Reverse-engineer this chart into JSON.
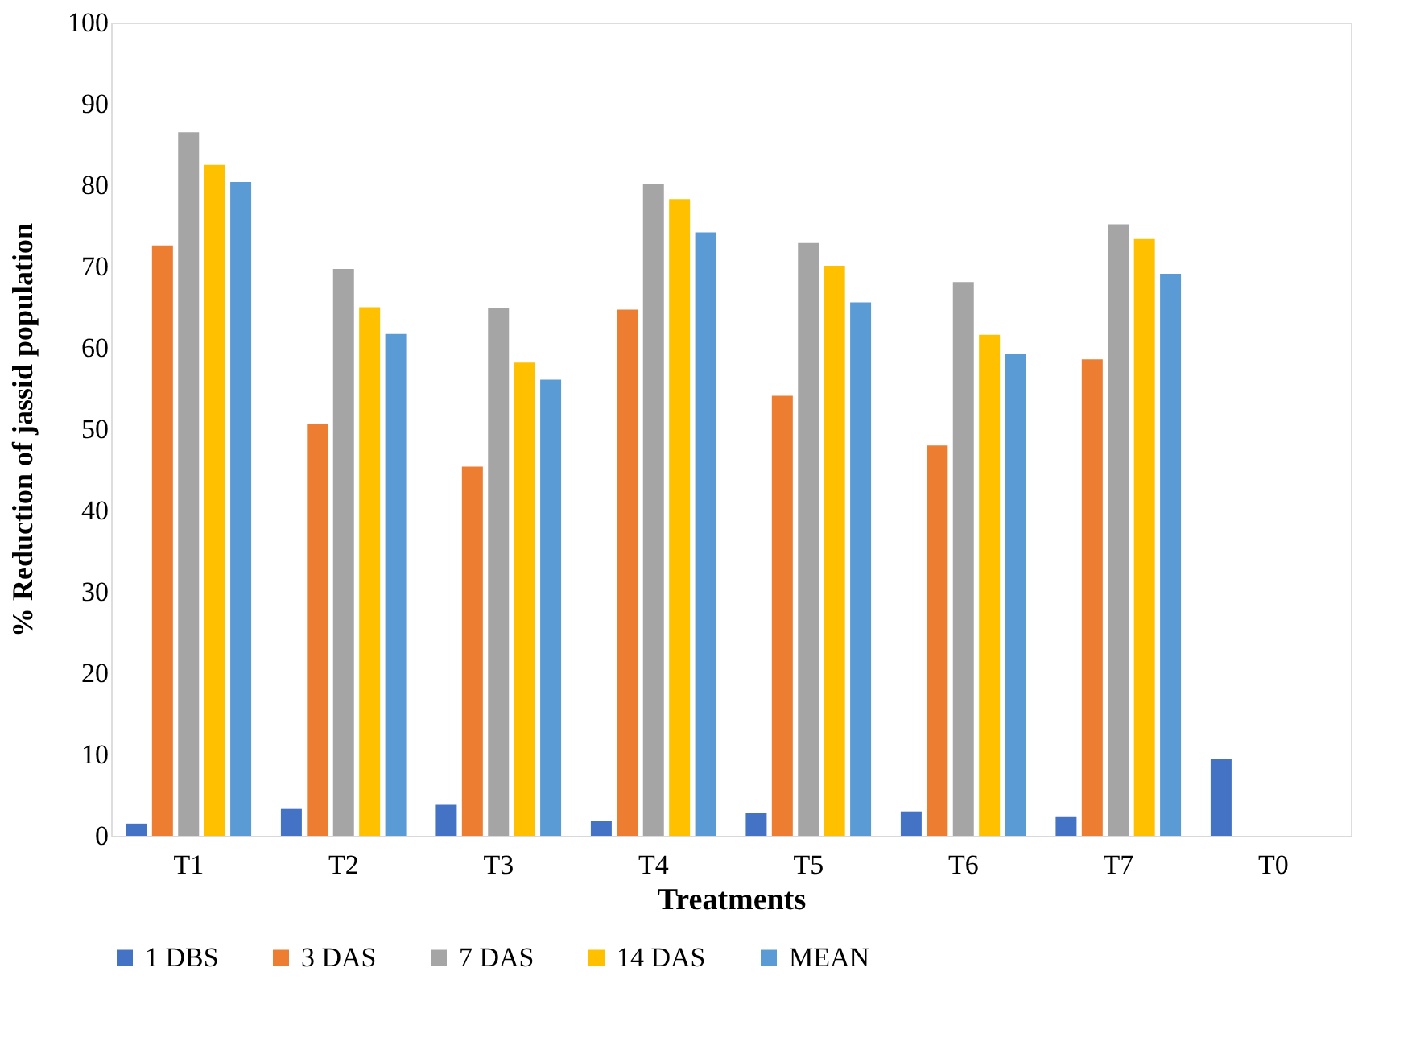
{
  "chart_data": {
    "type": "bar",
    "xlabel": "Treatments",
    "ylabel": "%    Reduction of jassid population",
    "categories": [
      "T1",
      "T2",
      "T3",
      "T4",
      "T5",
      "T6",
      "T7",
      "T0"
    ],
    "series": [
      {
        "name": "1 DBS",
        "color": "#4472c4",
        "values": [
          1.5,
          3.3,
          3.8,
          1.8,
          2.8,
          3.0,
          2.4,
          9.5
        ]
      },
      {
        "name": "3 DAS",
        "color": "#ed7d31",
        "values": [
          72.6,
          50.6,
          45.4,
          64.7,
          54.1,
          48.0,
          58.6,
          null
        ]
      },
      {
        "name": "7 DAS",
        "color": "#a5a5a5",
        "values": [
          86.5,
          69.7,
          64.9,
          80.1,
          72.9,
          68.1,
          75.2,
          null
        ]
      },
      {
        "name": "14 DAS",
        "color": "#ffc000",
        "values": [
          82.5,
          65.0,
          58.2,
          78.3,
          70.1,
          61.6,
          73.4,
          null
        ]
      },
      {
        "name": "MEAN",
        "color": "#5b9bd5",
        "values": [
          80.4,
          61.7,
          56.1,
          74.2,
          65.6,
          59.2,
          69.1,
          null
        ]
      }
    ],
    "ylim": [
      0,
      100
    ],
    "yticks": [
      0,
      10,
      20,
      30,
      40,
      50,
      60,
      70,
      80,
      90,
      100
    ],
    "grid": false,
    "legend": "bottom"
  }
}
